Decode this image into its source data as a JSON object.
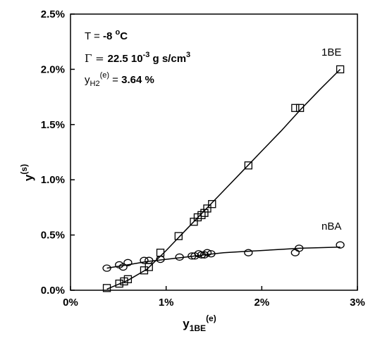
{
  "chart_data": {
    "type": "scatter",
    "xlabel": {
      "main": "y",
      "sub": "1BE",
      "sup": "(e)"
    },
    "ylabel": {
      "main": "y",
      "sup": "(s)"
    },
    "xlim": [
      0,
      3
    ],
    "ylim": [
      0,
      2.5
    ],
    "x_ticks": [
      "0%",
      "1%",
      "2%",
      "3%"
    ],
    "y_ticks": [
      "0.0%",
      "0.5%",
      "1.0%",
      "1.5%",
      "2.0%",
      "2.5%"
    ],
    "grid": false,
    "annotations": {
      "line1": {
        "pre": "T = ",
        "value": "-8 ",
        "sup": "o",
        "unit": "C"
      },
      "line2": {
        "sym": "Γ = ",
        "value": "22.5 10",
        "sup": "-3",
        "unit": " g s/cm",
        "unit_sup": "3"
      },
      "line3": {
        "pre": "y",
        "sub": "H2",
        "sup": "(e)",
        "eq": " = ",
        "value": "3.64 %"
      }
    },
    "series": [
      {
        "name": "1BE",
        "marker": "square",
        "points": [
          [
            0.38,
            0.02
          ],
          [
            0.51,
            0.06
          ],
          [
            0.56,
            0.08
          ],
          [
            0.6,
            0.1
          ],
          [
            0.77,
            0.18
          ],
          [
            0.82,
            0.21
          ],
          [
            0.94,
            0.34
          ],
          [
            1.13,
            0.49
          ],
          [
            1.29,
            0.62
          ],
          [
            1.33,
            0.66
          ],
          [
            1.37,
            0.68
          ],
          [
            1.4,
            0.7
          ],
          [
            1.43,
            0.74
          ],
          [
            1.48,
            0.78
          ],
          [
            1.86,
            1.13
          ],
          [
            2.35,
            1.65
          ],
          [
            2.4,
            1.65
          ],
          [
            2.82,
            2.0
          ]
        ],
        "curve": [
          [
            0.38,
            0.01
          ],
          [
            0.6,
            0.09
          ],
          [
            0.8,
            0.19
          ],
          [
            1.0,
            0.36
          ],
          [
            1.2,
            0.54
          ],
          [
            1.4,
            0.72
          ],
          [
            1.6,
            0.9
          ],
          [
            1.8,
            1.08
          ],
          [
            2.0,
            1.26
          ],
          [
            2.2,
            1.44
          ],
          [
            2.4,
            1.63
          ],
          [
            2.6,
            1.81
          ],
          [
            2.82,
            2.0
          ]
        ]
      },
      {
        "name": "nBA",
        "marker": "circle",
        "points": [
          [
            0.38,
            0.2
          ],
          [
            0.51,
            0.23
          ],
          [
            0.55,
            0.21
          ],
          [
            0.6,
            0.25
          ],
          [
            0.77,
            0.27
          ],
          [
            0.82,
            0.27
          ],
          [
            0.94,
            0.28
          ],
          [
            1.14,
            0.3
          ],
          [
            1.27,
            0.31
          ],
          [
            1.3,
            0.31
          ],
          [
            1.34,
            0.33
          ],
          [
            1.37,
            0.32
          ],
          [
            1.4,
            0.32
          ],
          [
            1.43,
            0.34
          ],
          [
            1.47,
            0.33
          ],
          [
            1.86,
            0.34
          ],
          [
            2.35,
            0.34
          ],
          [
            2.39,
            0.38
          ],
          [
            2.82,
            0.41
          ]
        ],
        "curve": [
          [
            0.38,
            0.2
          ],
          [
            0.6,
            0.23
          ],
          [
            0.8,
            0.26
          ],
          [
            1.0,
            0.28
          ],
          [
            1.2,
            0.3
          ],
          [
            1.4,
            0.32
          ],
          [
            1.6,
            0.34
          ],
          [
            1.8,
            0.35
          ],
          [
            2.0,
            0.36
          ],
          [
            2.2,
            0.37
          ],
          [
            2.4,
            0.38
          ],
          [
            2.6,
            0.385
          ],
          [
            2.82,
            0.39
          ]
        ]
      }
    ]
  }
}
